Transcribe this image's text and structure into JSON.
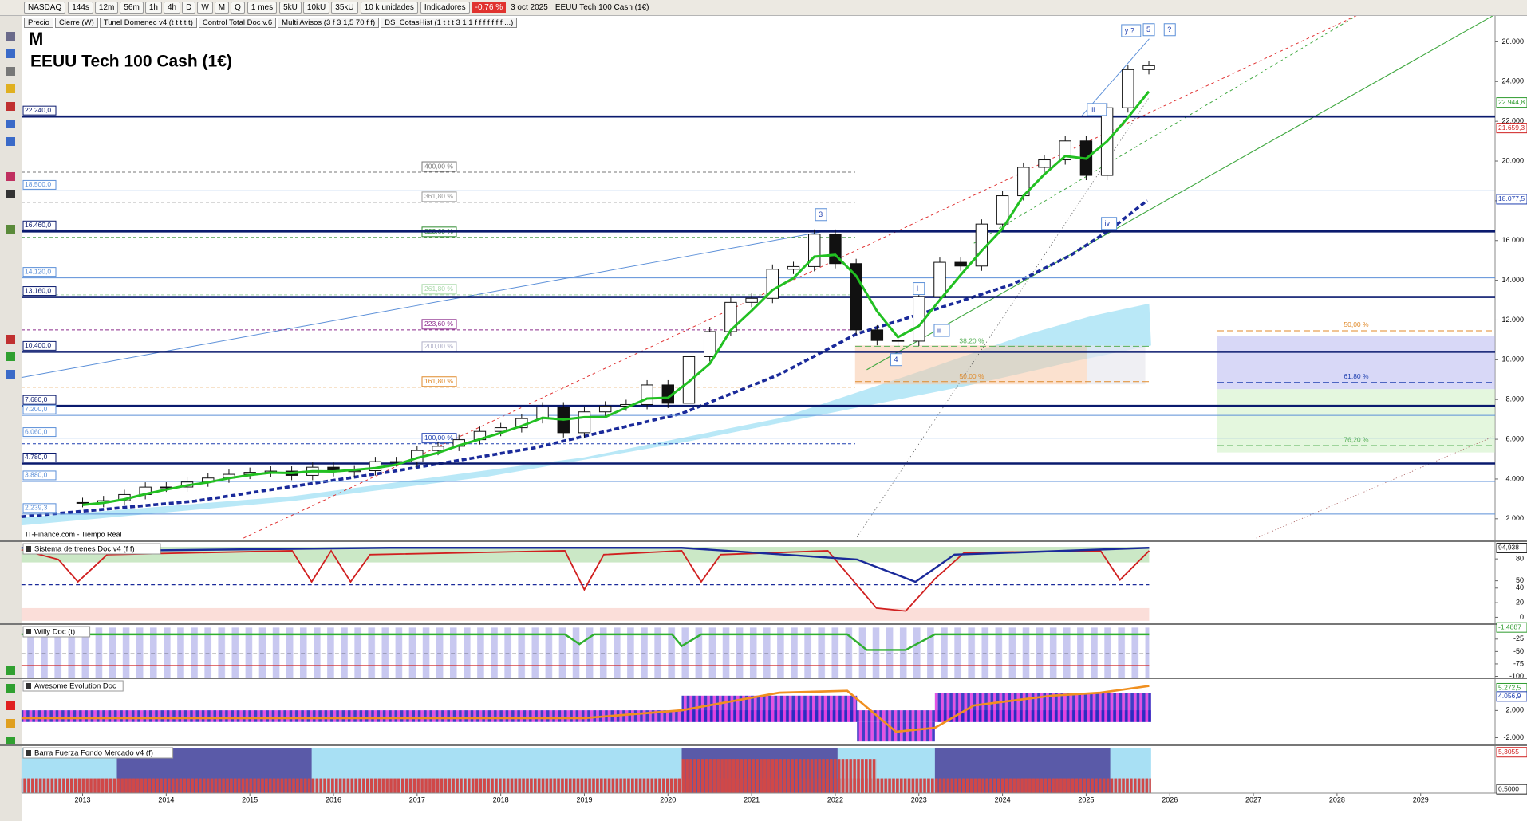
{
  "toolbar": {
    "symbol": "NASDAQ",
    "periods": [
      "144s",
      "12m",
      "56m",
      "1h",
      "4h",
      "D",
      "W",
      "M",
      "Q"
    ],
    "range": "1 mes",
    "unit_buttons": [
      "5kU",
      "10kU",
      "35kU"
    ],
    "units": "10 k unidades",
    "indicators": "Indicadores",
    "change": "-0,76 %",
    "date": "3 oct 2025",
    "instrument": "EEUU Tech 100 Cash (1€)"
  },
  "indicator_bar": [
    "Precio",
    "Cierre (W)",
    "Tunel Domenec v4 (t t t t t)",
    "Control Total Doc v.6",
    "Multi Avisos (3 f 3 1,5 70 f f)",
    "DS_CotasHist (1 t t t 3 1 1 f f f f f f f ...)"
  ],
  "chart_data": {
    "type": "candlestick",
    "period": "M",
    "title": "EEUU Tech 100 Cash (1€)",
    "source": "IT-Finance.com - Tiempo Real",
    "x": [
      2013,
      2013.25,
      2013.5,
      2013.75,
      2014,
      2014.25,
      2014.5,
      2014.75,
      2015,
      2015.25,
      2015.5,
      2015.75,
      2016,
      2016.25,
      2016.5,
      2016.75,
      2017,
      2017.25,
      2017.5,
      2017.75,
      2018,
      2018.25,
      2018.5,
      2018.75,
      2019,
      2019.25,
      2019.5,
      2019.75,
      2020,
      2020.25,
      2020.5,
      2020.75,
      2021,
      2021.25,
      2021.5,
      2021.75,
      2022,
      2022.25,
      2022.5,
      2022.75,
      2023,
      2023.25,
      2023.5,
      2023.75,
      2024,
      2024.25,
      2024.5,
      2024.75,
      2025,
      2025.25,
      2025.5,
      2025.75
    ],
    "close": [
      2818,
      2910,
      3218,
      3592,
      3596,
      3849,
      4049,
      4236,
      4334,
      4396,
      4181,
      4593,
      4370,
      4418,
      4875,
      4864,
      5436,
      5647,
      5979,
      6396,
      6581,
      7040,
      7627,
      6330,
      7378,
      7671,
      7749,
      8733,
      7813,
      10156,
      11418,
      12888,
      13091,
      14554,
      14690,
      16320,
      14838,
      11503,
      10971,
      10939,
      13181,
      14904,
      14715,
      16826,
      18254,
      19682,
      20060,
      21012,
      19278,
      22679,
      24600,
      24800
    ],
    "ma": [
      2700,
      2800,
      2980,
      3240,
      3470,
      3680,
      3830,
      4040,
      4200,
      4320,
      4300,
      4390,
      4380,
      4460,
      4550,
      4720,
      5060,
      5320,
      5690,
      6000,
      6320,
      6670,
      7080,
      6990,
      7110,
      7120,
      7590,
      8050,
      8090,
      8900,
      9800,
      11490,
      12470,
      13510,
      14110,
      15190,
      15280,
      14220,
      12440,
      11140,
      11700,
      13010,
      14270,
      15480,
      16600,
      18250,
      19330,
      20250,
      20120,
      20990,
      22190,
      23500
    ],
    "xlim": [
      2012.27,
      2029.89
    ],
    "xticks": [
      2013,
      2014,
      2015,
      2016,
      2017,
      2018,
      2019,
      2020,
      2021,
      2022,
      2023,
      2024,
      2025,
      2026,
      2027,
      2028,
      2029
    ],
    "ylim": [
      1070,
      27220
    ],
    "yticks": [
      {
        "value": 2000,
        "label": "2.000"
      },
      {
        "value": 4000,
        "label": "4.000"
      },
      {
        "value": 6000,
        "label": "6.000"
      },
      {
        "value": 8000,
        "label": "8.000"
      },
      {
        "value": 10000,
        "label": "10.000"
      },
      {
        "value": 12000,
        "label": "12.000"
      },
      {
        "value": 14000,
        "label": "14.000"
      },
      {
        "value": 16000,
        "label": "16.000"
      },
      {
        "value": 18000,
        "label": "18.000"
      },
      {
        "value": 20000,
        "label": "20.000"
      },
      {
        "value": 22000,
        "label": "22.000"
      },
      {
        "value": 24000,
        "label": "24.000"
      },
      {
        "value": 26000,
        "label": "26.000"
      }
    ],
    "levels": [
      {
        "value": 22240,
        "label": "22.240,0",
        "style": "major"
      },
      {
        "value": 18500,
        "label": "18.500,0",
        "style": "minor"
      },
      {
        "value": 16460,
        "label": "16.460,0",
        "style": "major"
      },
      {
        "value": 14120,
        "label": "14.120,0",
        "style": "minor"
      },
      {
        "value": 13160,
        "label": "13.160,0",
        "style": "major"
      },
      {
        "value": 10400,
        "label": "10.400,0",
        "style": "major"
      },
      {
        "value": 7680,
        "label": "7.680,0",
        "style": "major"
      },
      {
        "value": 7200,
        "label": "7.200,0",
        "style": "minor"
      },
      {
        "value": 6060,
        "label": "6.060,0",
        "style": "minor"
      },
      {
        "value": 4780,
        "label": "4.780,0",
        "style": "major"
      },
      {
        "value": 3880,
        "label": "3.880,0",
        "style": "minor"
      },
      {
        "value": 2239.3,
        "label": "2.239,3",
        "style": "minor"
      }
    ],
    "fib_levels": [
      {
        "value": 19438,
        "label": "400,00 %",
        "color": "#777777"
      },
      {
        "value": 17920,
        "label": "361,80 %",
        "color": "#999999"
      },
      {
        "value": 16157,
        "label": "323,60 %",
        "color": "#2e8b2e"
      },
      {
        "value": 13270,
        "label": "261,80 %",
        "color": "#a8d8a8"
      },
      {
        "value": 11504,
        "label": "223,60 %",
        "color": "#8b2a8b"
      },
      {
        "value": 10380,
        "label": "200,00 %",
        "color": "#b0b0c8"
      },
      {
        "value": 8620,
        "label": "161,80 %",
        "color": "#e08a2a"
      },
      {
        "value": 5775,
        "label": "100,00 %",
        "color": "#1f3fb0"
      }
    ],
    "zone_levels": [
      {
        "value": 11460,
        "label": "50,00 %",
        "color": "#e08a2a"
      },
      {
        "value": 8860,
        "label": "61,80 %",
        "color": "#2040b0"
      },
      {
        "value": 5680,
        "label": "76,20 %",
        "color": "#58b058"
      }
    ],
    "box_levels": [
      {
        "value": 10680,
        "label": "38,20 %",
        "color": "#58b058"
      },
      {
        "value": 8900,
        "label": "50,00 %",
        "color": "#e08a2a"
      }
    ],
    "price_markers": [
      {
        "value": 22944.8,
        "label": "22.944,8",
        "color": "#2e9b2e"
      },
      {
        "value": 21659.3,
        "label": "21.659,3",
        "color": "#d02020"
      },
      {
        "value": 18077.5,
        "label": "18.077,5",
        "color": "#1f3fb0"
      }
    ],
    "wave_labels": [
      {
        "label": "3",
        "x": 2021.83,
        "y": 17283
      },
      {
        "label": "I",
        "x": 2023.0,
        "y": 13561
      },
      {
        "label": "ii",
        "x": 2023.25,
        "y": 11456
      },
      {
        "label": "4",
        "x": 2022.73,
        "y": 9986
      },
      {
        "label": "iii",
        "x": 2025.08,
        "y": 22572
      },
      {
        "label": "iv",
        "x": 2025.25,
        "y": 16842
      },
      {
        "label": "y ?",
        "x": 2025.49,
        "y": 26540
      },
      {
        "label": "5",
        "x": 2025.75,
        "y": 26588
      },
      {
        "label": "?",
        "x": 2026.0,
        "y": 26588
      }
    ],
    "panels": [
      {
        "title": "Sistema de trenes Doc v4 (f f)",
        "ylim": [
          -5,
          102
        ],
        "yticks": [
          80,
          50,
          40,
          20,
          0
        ],
        "markers": [
          {
            "value": 94.938,
            "label": "94,938",
            "color": "#222222"
          }
        ]
      },
      {
        "title": "Willy Doc (t)",
        "ylim": [
          -104,
          2
        ],
        "yticks": [
          -25,
          -50,
          -75,
          -100
        ],
        "markers": [
          {
            "value": -1.4887,
            "label": "-1,4887",
            "color": "#2e9b2e"
          }
        ]
      },
      {
        "title": "Awesome Evolution Doc",
        "ylim": [
          -3000,
          6500
        ],
        "yticks": [
          {
            "value": 2000,
            "label": "2.000"
          },
          {
            "value": -2000,
            "label": "-2.000"
          }
        ],
        "markers": [
          {
            "value": 5272.5,
            "label": "5.272,5",
            "color": "#2e9b2e"
          },
          {
            "value": 4056.9,
            "label": "4.056,9",
            "color": "#1f3fb0"
          }
        ]
      },
      {
        "title": "Barra Fuerza Fondo Mercado v4 (f)",
        "ylim": [
          0,
          6
        ],
        "yticks": [],
        "markers": [
          {
            "value": 5.3055,
            "label": "5,3055",
            "color": "#d02020"
          },
          {
            "value": 0.5,
            "label": "0,5000",
            "color": "#222222"
          }
        ]
      }
    ]
  }
}
